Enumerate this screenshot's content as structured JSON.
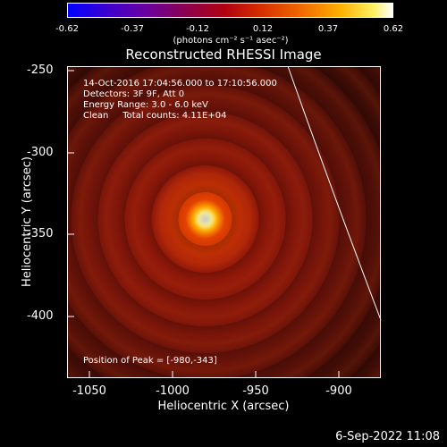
{
  "colorbar": {
    "ticks": [
      "-0.62",
      "-0.37",
      "-0.12",
      "0.12",
      "0.37",
      "0.62"
    ],
    "unit": "(photons cm⁻² s⁻¹ asec⁻²)"
  },
  "title": "Reconstructed RHESSI Image",
  "info": {
    "line1": "14-Oct-2016 17:04:56.000 to 17:10:56.000",
    "line2": "Detectors: 3F 9F, Att 0",
    "line3": "Energy Range: 3.0 - 6.0 keV",
    "line4": "Clean     Total counts: 4.11E+04",
    "peak": "Position of Peak = [-980,-343]"
  },
  "axes": {
    "x_label": "Heliocentric X (arcsec)",
    "y_label": "Heliocentric Y (arcsec)",
    "x_ticks": [
      "-1050",
      "-1000",
      "-950",
      "-900"
    ],
    "y_ticks": [
      "-250",
      "-300",
      "-350",
      "-400"
    ]
  },
  "timestamp": "6-Sep-2022 11:08"
}
